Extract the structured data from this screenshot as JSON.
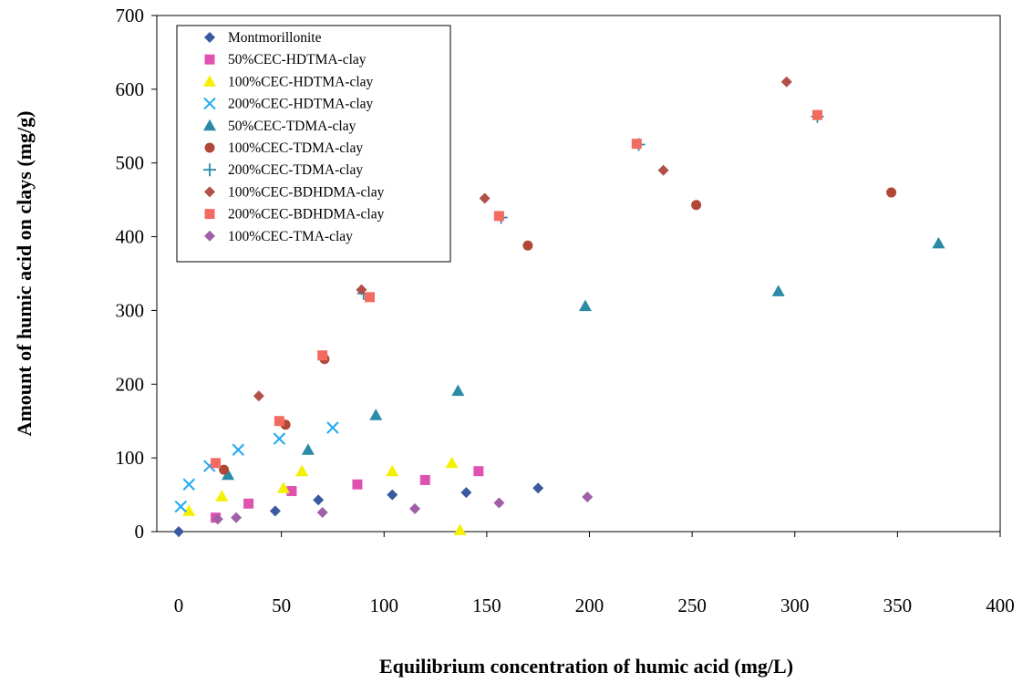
{
  "chart_data": {
    "type": "scatter",
    "title": "",
    "xlabel": "Equilibrium concentration of humic acid (mg/L)",
    "ylabel": "Amount of humic acid on clays (mg/g)",
    "xlim": [
      0,
      400
    ],
    "ylim": [
      0,
      700
    ],
    "x_ticks": [
      "0",
      "50",
      "100",
      "150",
      "200",
      "250",
      "300",
      "350",
      "400"
    ],
    "y_ticks": [
      "0",
      "100",
      "200",
      "300",
      "400",
      "500",
      "600",
      "700"
    ],
    "grid": false,
    "legend_position": "top-left",
    "series": [
      {
        "name": "Montmorillonite",
        "marker": "diamond",
        "color": "#3a5aa0",
        "points": [
          [
            0,
            0
          ],
          [
            47,
            28
          ],
          [
            68,
            43
          ],
          [
            104,
            50
          ],
          [
            140,
            53
          ],
          [
            175,
            59
          ]
        ]
      },
      {
        "name": "50%CEC-HDTMA-clay",
        "marker": "square",
        "color": "#e052b0",
        "points": [
          [
            18,
            19
          ],
          [
            34,
            38
          ],
          [
            55,
            55
          ],
          [
            87,
            64
          ],
          [
            120,
            70
          ],
          [
            146,
            82
          ]
        ]
      },
      {
        "name": "100%CEC-HDTMA-clay",
        "marker": "triangle",
        "color": "#f3f000",
        "points": [
          [
            5,
            28
          ],
          [
            21,
            48
          ],
          [
            51,
            59
          ],
          [
            60,
            82
          ],
          [
            104,
            82
          ],
          [
            133,
            93
          ],
          [
            137,
            2
          ]
        ]
      },
      {
        "name": "200%CEC-HDTMA-clay",
        "marker": "x",
        "color": "#1eaaf0",
        "points": [
          [
            1,
            34
          ],
          [
            5,
            64
          ],
          [
            15,
            89
          ],
          [
            29,
            111
          ],
          [
            49,
            126
          ],
          [
            75,
            141
          ]
        ]
      },
      {
        "name": "50%CEC-TDMA-clay",
        "marker": "triangle",
        "color": "#2a8aa8",
        "points": [
          [
            24,
            77
          ],
          [
            63,
            111
          ],
          [
            96,
            158
          ],
          [
            136,
            191
          ],
          [
            198,
            306
          ],
          [
            292,
            326
          ],
          [
            370,
            391
          ]
        ]
      },
      {
        "name": "100%CEC-TDMA-clay",
        "marker": "circle",
        "color": "#b04838",
        "points": [
          [
            22,
            84
          ],
          [
            52,
            145
          ],
          [
            71,
            234
          ],
          [
            170,
            388
          ],
          [
            252,
            443
          ],
          [
            347,
            460
          ]
        ]
      },
      {
        "name": "200%CEC-TDMA-clay",
        "marker": "plus",
        "color": "#2a8aa8",
        "points": [
          [
            90,
            323
          ],
          [
            157,
            426
          ],
          [
            224,
            525
          ],
          [
            311,
            563
          ]
        ]
      },
      {
        "name": "100%CEC-BDHDMA-clay",
        "marker": "diamond",
        "color": "#b05048",
        "points": [
          [
            39,
            184
          ],
          [
            89,
            328
          ],
          [
            149,
            452
          ],
          [
            236,
            490
          ],
          [
            296,
            610
          ]
        ]
      },
      {
        "name": "200%CEC-BDHDMA-clay",
        "marker": "square",
        "color": "#f26a60",
        "points": [
          [
            18,
            93
          ],
          [
            49,
            150
          ],
          [
            70,
            239
          ],
          [
            93,
            318
          ],
          [
            156,
            428
          ],
          [
            223,
            526
          ],
          [
            311,
            565
          ]
        ]
      },
      {
        "name": "100%CEC-TMA-clay",
        "marker": "diamond",
        "color": "#a060a8",
        "points": [
          [
            19,
            17
          ],
          [
            28,
            19
          ],
          [
            70,
            26
          ],
          [
            115,
            31
          ],
          [
            156,
            39
          ],
          [
            199,
            47
          ]
        ]
      }
    ]
  }
}
